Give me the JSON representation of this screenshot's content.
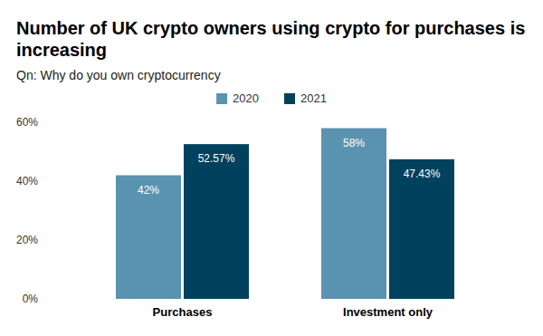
{
  "chart_data": {
    "type": "bar",
    "title": "Number of UK crypto owners using crypto for purchases is increasing",
    "subtitle": "Qn: Why do you own cryptocurrency",
    "categories": [
      "Purchases",
      "Investment only"
    ],
    "series": [
      {
        "name": "2020",
        "color": "#5a93b0",
        "values": [
          42,
          58
        ],
        "value_labels": [
          "42%",
          "58%"
        ]
      },
      {
        "name": "2021",
        "color": "#00415e",
        "values": [
          52.57,
          47.43
        ],
        "value_labels": [
          "52.57%",
          "47.43%"
        ]
      }
    ],
    "ylim": [
      0,
      60
    ],
    "yticks": [
      {
        "value": 0,
        "label": "0%"
      },
      {
        "value": 20,
        "label": "20%"
      },
      {
        "value": 40,
        "label": "40%"
      },
      {
        "value": 60,
        "label": "60%"
      }
    ],
    "grid": false,
    "legend": "top",
    "data_labels": true
  }
}
